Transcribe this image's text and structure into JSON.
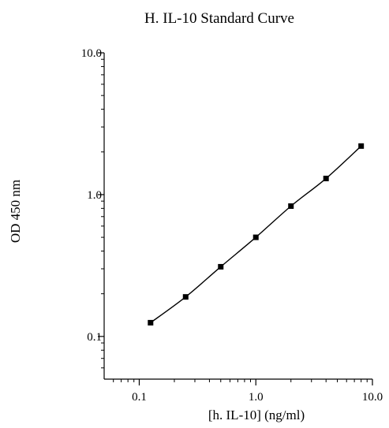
{
  "chart_data": {
    "type": "line",
    "title": "H. IL-10 Standard Curve",
    "xlabel": "[h. IL-10] (ng/ml)",
    "ylabel": "OD 450 nm",
    "x_scale": "log",
    "y_scale": "log",
    "xlim": [
      0.05,
      10.0
    ],
    "ylim": [
      0.05,
      10.0
    ],
    "x_ticks": [
      {
        "value": 0.1,
        "label": "0.1"
      },
      {
        "value": 1.0,
        "label": "1.0"
      },
      {
        "value": 10.0,
        "label": "10.0"
      }
    ],
    "y_ticks": [
      {
        "value": 0.1,
        "label": "0.1"
      },
      {
        "value": 1.0,
        "label": "1.0"
      },
      {
        "value": 10.0,
        "label": "10.0"
      }
    ],
    "grid": false,
    "series": [
      {
        "x": [
          0.125,
          0.25,
          0.5,
          1.0,
          2.0,
          4.0,
          8.0
        ],
        "y": [
          0.125,
          0.19,
          0.31,
          0.5,
          0.83,
          1.3,
          2.2
        ]
      }
    ],
    "colors": {
      "line": "#000000",
      "marker": "#000000"
    }
  }
}
